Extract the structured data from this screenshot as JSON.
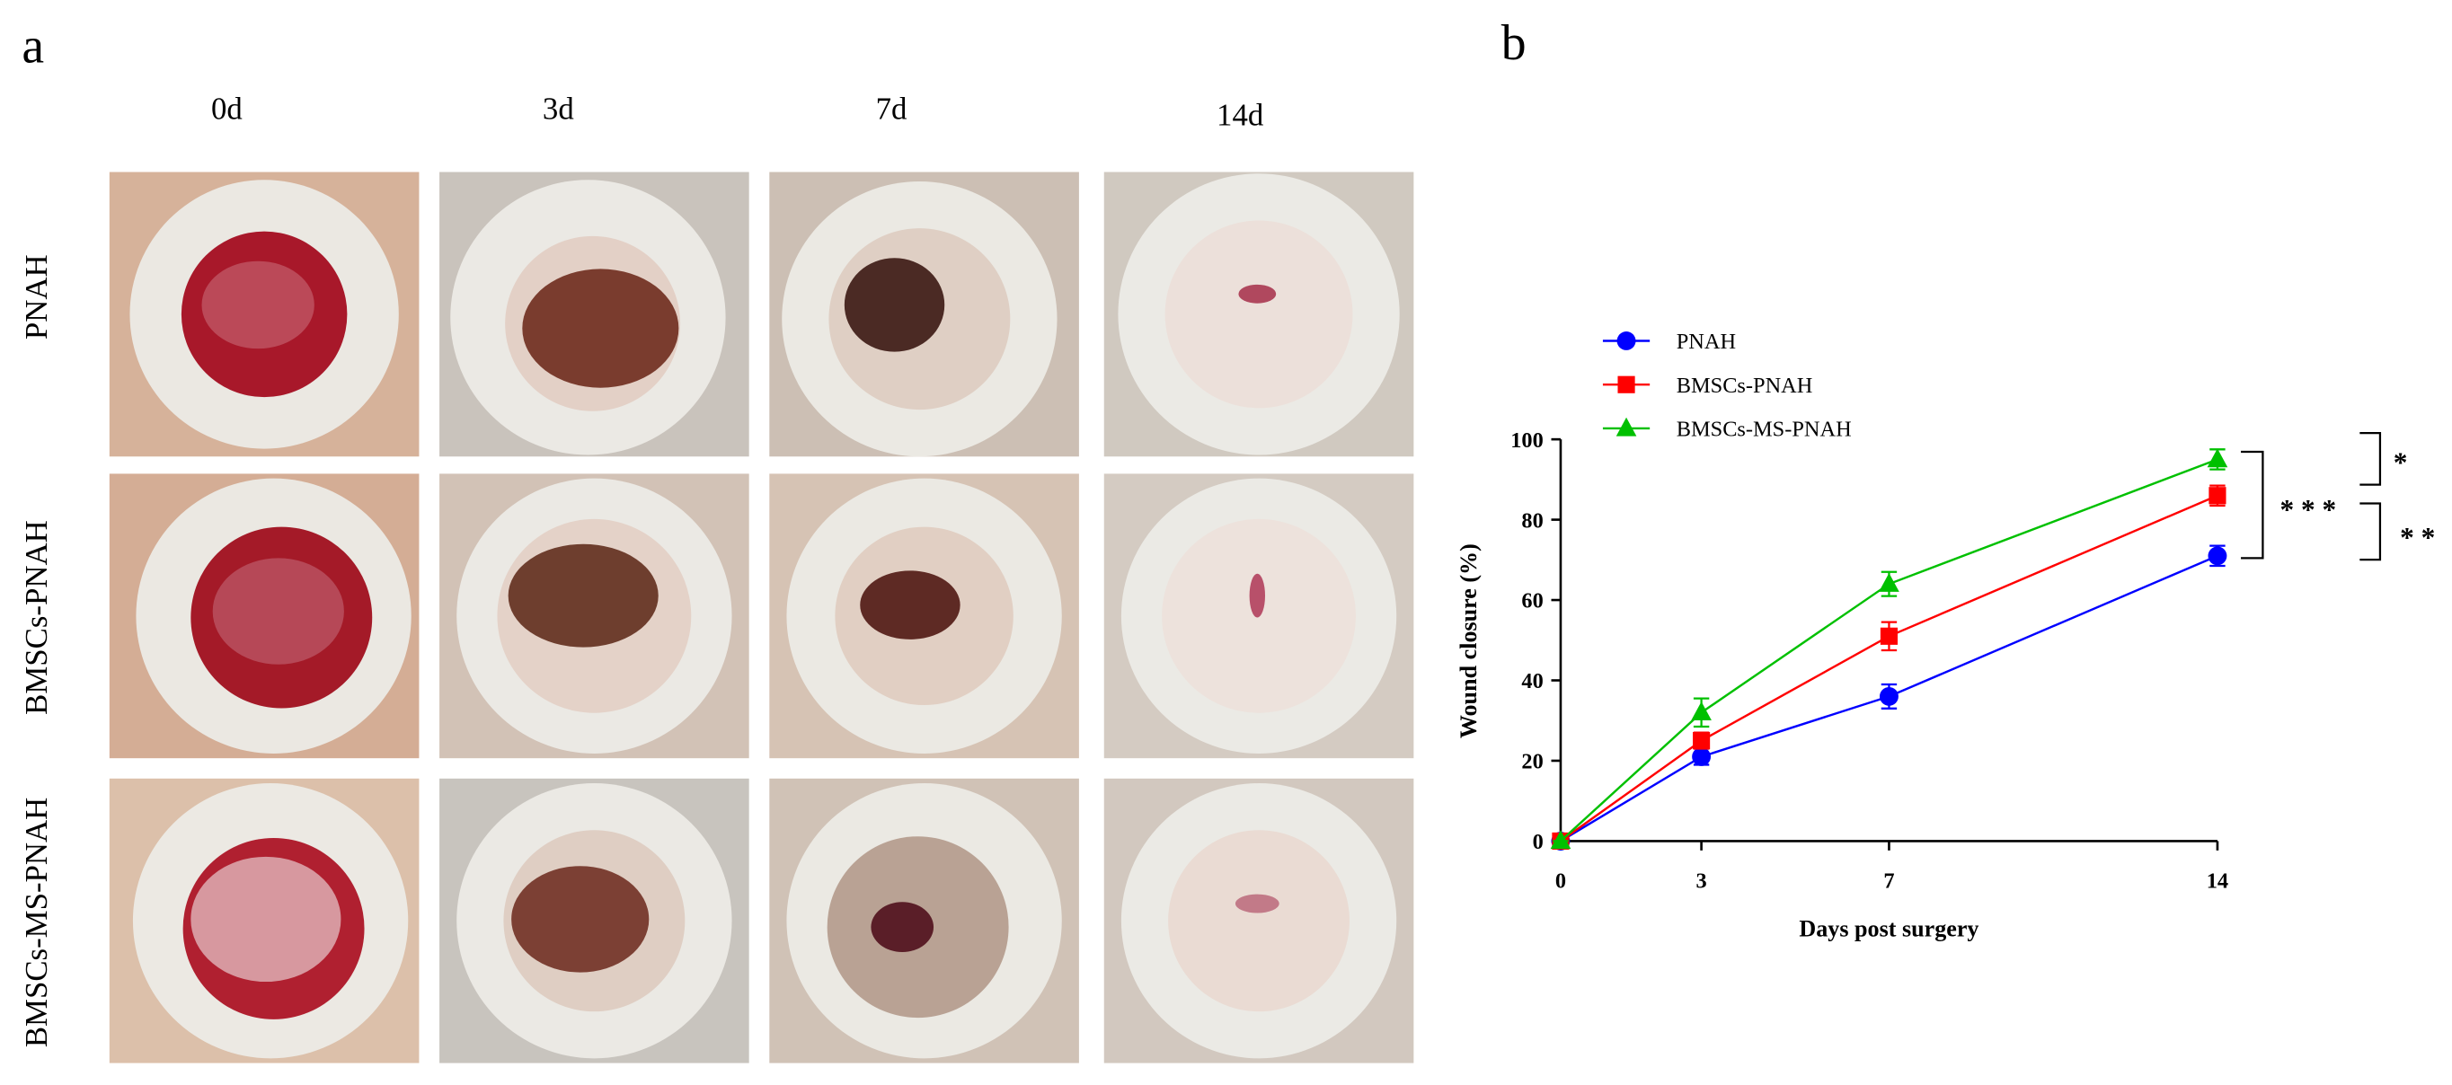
{
  "panel_labels": [
    "a",
    "b"
  ],
  "photo_grid": {
    "columns": [
      "0d",
      "3d",
      "7d",
      "14d"
    ],
    "rows": [
      "PNAH",
      "BMSCs-PNAH",
      "BMSCs-MS-PNAH"
    ]
  },
  "chart_data": {
    "type": "line",
    "xlabel": "Days post surgery",
    "ylabel": "Wound closure (%)",
    "x": [
      0,
      3,
      7,
      14
    ],
    "series": [
      {
        "name": "PNAH",
        "color": "#0000ff",
        "marker": "circle",
        "values": [
          0,
          21,
          36,
          71
        ],
        "errors": [
          0,
          2,
          3,
          2.5
        ]
      },
      {
        "name": "BMSCs-PNAH",
        "color": "#ff0000",
        "marker": "square",
        "values": [
          0,
          25,
          51,
          86
        ],
        "errors": [
          0,
          2,
          3.5,
          2.5
        ]
      },
      {
        "name": "BMSCs-MS-PNAH",
        "color": "#00c000",
        "marker": "triangle",
        "values": [
          0,
          32,
          64,
          95
        ],
        "errors": [
          0,
          3.5,
          3,
          2.5
        ]
      }
    ],
    "xlim": [
      0,
      14
    ],
    "xticks": [
      0,
      3,
      7,
      14
    ],
    "ylim": [
      0,
      100
    ],
    "yticks": [
      0,
      20,
      40,
      60,
      80,
      100
    ],
    "legend": "upper left",
    "annotations": [
      "* * *",
      "*",
      "* *"
    ]
  }
}
